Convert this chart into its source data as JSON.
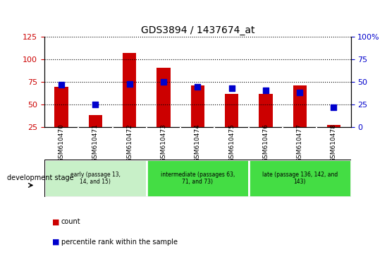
{
  "title": "GDS3894 / 1437674_at",
  "samples": [
    "GSM610470",
    "GSM610471",
    "GSM610472",
    "GSM610473",
    "GSM610474",
    "GSM610475",
    "GSM610476",
    "GSM610477",
    "GSM610478"
  ],
  "counts": [
    70,
    38,
    107,
    91,
    71,
    62,
    62,
    71,
    27
  ],
  "percentile_ranks": [
    47,
    25,
    48,
    50,
    45,
    43,
    41,
    38,
    22
  ],
  "left_ylim": [
    25,
    125
  ],
  "left_yticks": [
    25,
    50,
    75,
    100,
    125
  ],
  "right_ylim": [
    0,
    100
  ],
  "right_yticks": [
    0,
    25,
    50,
    75,
    100
  ],
  "right_yticklabels": [
    "0",
    "25",
    "50",
    "75",
    "100%"
  ],
  "bar_color": "#cc0000",
  "dot_color": "#0000cc",
  "bg_color": "#ffffff",
  "plot_bg": "#ffffff",
  "gray_strip_color": "#d8d8d8",
  "groups": [
    {
      "label": "early (passage 13,\n14, and 15)",
      "start": 0,
      "end": 3,
      "color": "#c8f0c8"
    },
    {
      "label": "intermediate (passages 63,\n71, and 73)",
      "start": 3,
      "end": 6,
      "color": "#44dd44"
    },
    {
      "label": "late (passage 136, 142, and\n143)",
      "start": 6,
      "end": 9,
      "color": "#44dd44"
    }
  ],
  "legend_count_color": "#cc0000",
  "legend_rank_color": "#0000cc",
  "dev_stage_label": "development stage",
  "tick_label_color_left": "#cc0000",
  "tick_label_color_right": "#0000cc",
  "dot_size": 30,
  "bar_width": 0.4
}
